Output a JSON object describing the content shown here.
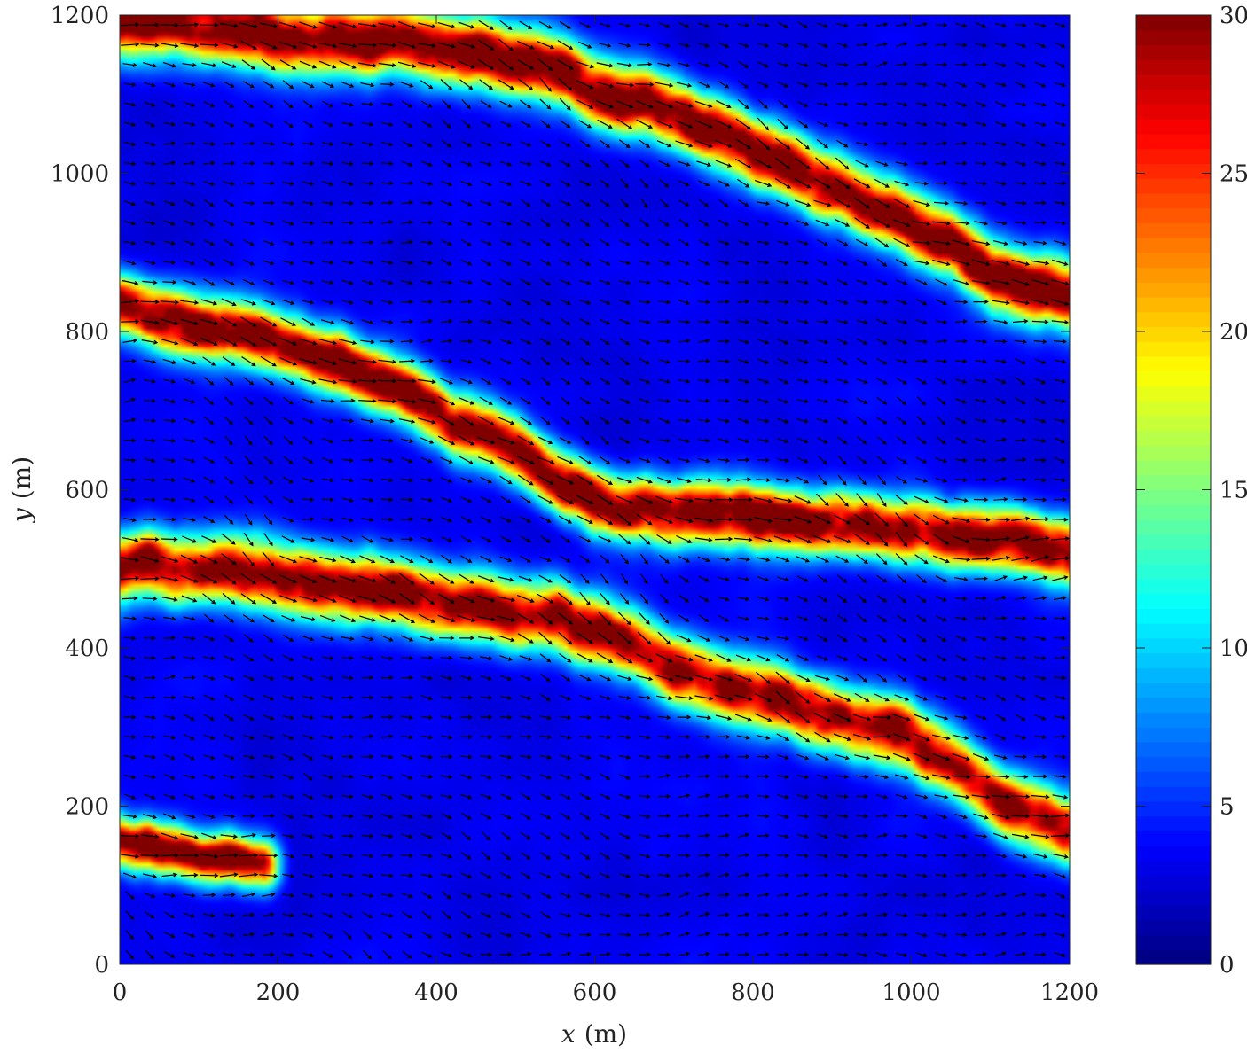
{
  "chart_data": {
    "type": "heatmap",
    "title": "",
    "xlabel": "x (m)",
    "ylabel": "y (m)",
    "xlabel_var": "x",
    "xlabel_unit": "(m)",
    "ylabel_var": "y",
    "ylabel_unit": "(m)",
    "xlim": [
      0,
      1200
    ],
    "ylim": [
      0,
      1200
    ],
    "x_ticks": [
      0,
      200,
      400,
      600,
      800,
      1000,
      1200
    ],
    "y_ticks": [
      0,
      200,
      400,
      600,
      800,
      1000,
      1200
    ],
    "x_tick_labels": [
      "0",
      "200",
      "400",
      "600",
      "800",
      "1000",
      "1200"
    ],
    "y_tick_labels": [
      "0",
      "200",
      "400",
      "600",
      "800",
      "1000",
      "1200"
    ],
    "colorbar": {
      "colormap": "jet",
      "range": [
        0,
        30
      ],
      "ticks": [
        0,
        5,
        10,
        15,
        20,
        25,
        30
      ],
      "tick_labels": [
        "0",
        "5",
        "10",
        "15",
        "20",
        "25",
        "30"
      ]
    },
    "background_value": 2,
    "high_value_bands": [
      {
        "name": "upper band",
        "points": [
          [
            0,
            1190
          ],
          [
            300,
            1170
          ],
          [
            500,
            1140
          ],
          [
            650,
            1090
          ],
          [
            800,
            1030
          ],
          [
            950,
            960
          ],
          [
            1100,
            880
          ],
          [
            1200,
            840
          ]
        ],
        "peak": 30,
        "width": 55
      },
      {
        "name": "middle band",
        "points": [
          [
            0,
            830
          ],
          [
            150,
            800
          ],
          [
            300,
            750
          ],
          [
            400,
            700
          ],
          [
            500,
            650
          ],
          [
            600,
            590
          ],
          [
            700,
            570
          ],
          [
            900,
            560
          ],
          [
            1050,
            540
          ],
          [
            1200,
            520
          ]
        ],
        "peak": 30,
        "width": 50
      },
      {
        "name": "lower band",
        "points": [
          [
            0,
            510
          ],
          [
            200,
            490
          ],
          [
            400,
            460
          ],
          [
            550,
            440
          ],
          [
            700,
            380
          ],
          [
            850,
            330
          ],
          [
            1000,
            280
          ],
          [
            1100,
            220
          ],
          [
            1200,
            170
          ]
        ],
        "peak": 28,
        "width": 55
      },
      {
        "name": "bottom-left patch",
        "points": [
          [
            0,
            150
          ],
          [
            60,
            140
          ],
          [
            120,
            130
          ],
          [
            180,
            120
          ]
        ],
        "peak": 30,
        "width": 40
      }
    ],
    "vector_field": {
      "description": "black quiver arrows of the flow direction over the whole field",
      "mean_direction": "toward lower-right, along the bands",
      "arrow_spacing": 25
    },
    "grid": false
  }
}
